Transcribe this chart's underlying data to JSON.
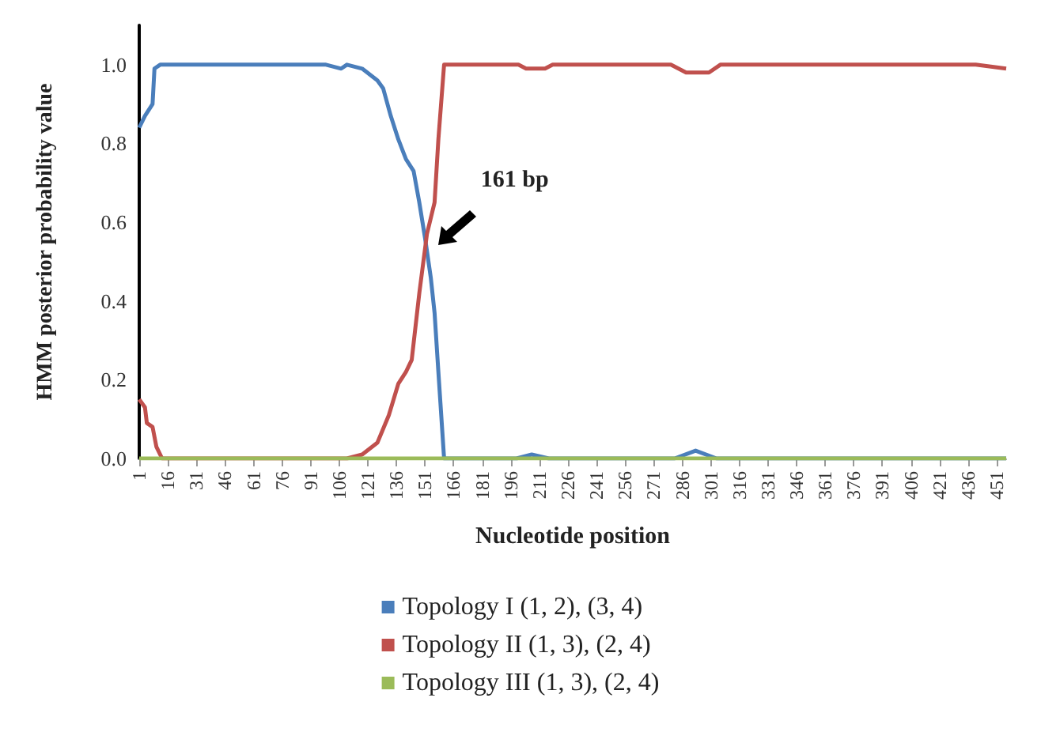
{
  "chart_data": {
    "type": "line",
    "xlabel": "Nucleotide position",
    "ylabel": "HMM posterior probability value",
    "xlim": [
      1,
      456
    ],
    "xticks": [
      1,
      16,
      31,
      46,
      61,
      76,
      91,
      106,
      121,
      136,
      151,
      166,
      181,
      196,
      211,
      226,
      241,
      256,
      271,
      286,
      301,
      316,
      331,
      346,
      361,
      376,
      391,
      406,
      421,
      436,
      451
    ],
    "ylim": [
      0,
      1.1
    ],
    "yticks": [
      {
        "value": 0,
        "label": "0.0"
      },
      {
        "value": 0.2,
        "label": "0.2"
      },
      {
        "value": 0.4,
        "label": "0.4"
      },
      {
        "value": 0.6,
        "label": "0.6"
      },
      {
        "value": 0.8,
        "label": "0.8"
      },
      {
        "value": 1,
        "label": "1.0"
      }
    ],
    "grid": false,
    "legend": "bottom",
    "marker": "none",
    "line_style": "solid",
    "annotations": [
      {
        "text": "161 bp",
        "x": 152,
        "y": 0.57
      }
    ],
    "series": [
      {
        "name": "Topology I (1, 2), (3, 4)",
        "color": "#4a7ebb",
        "x": [
          1,
          4,
          8,
          9,
          12,
          99,
          107,
          110,
          118,
          126,
          129,
          133,
          137,
          141,
          145,
          148,
          151,
          154,
          156,
          158,
          161,
          199,
          207,
          216,
          282,
          293,
          304,
          456
        ],
        "values": [
          0.84,
          0.87,
          0.9,
          0.99,
          1,
          1,
          0.99,
          1,
          0.99,
          0.96,
          0.94,
          0.87,
          0.81,
          0.76,
          0.73,
          0.65,
          0.56,
          0.46,
          0.37,
          0.22,
          0,
          0,
          0.01,
          0,
          0,
          0.02,
          0,
          0
        ]
      },
      {
        "name": "Topology II (1, 3), (2, 4)",
        "color": "#c0504d",
        "x": [
          1,
          4,
          5,
          8,
          10,
          13,
          110,
          118,
          126,
          132,
          137,
          141,
          144,
          148,
          152,
          156,
          158,
          161,
          200,
          204,
          214,
          218,
          280,
          288,
          300,
          306,
          440,
          456
        ],
        "values": [
          0.15,
          0.13,
          0.09,
          0.08,
          0.03,
          0,
          0,
          0.01,
          0.04,
          0.11,
          0.19,
          0.22,
          0.25,
          0.42,
          0.57,
          0.65,
          0.81,
          1,
          1,
          0.99,
          0.99,
          1,
          1,
          0.98,
          0.98,
          1,
          1,
          0.99
        ]
      },
      {
        "name": "Topology III (1, 3), (2, 4)",
        "color": "#9bbb59",
        "x": [
          1,
          456
        ],
        "values": [
          0,
          0
        ]
      }
    ]
  }
}
